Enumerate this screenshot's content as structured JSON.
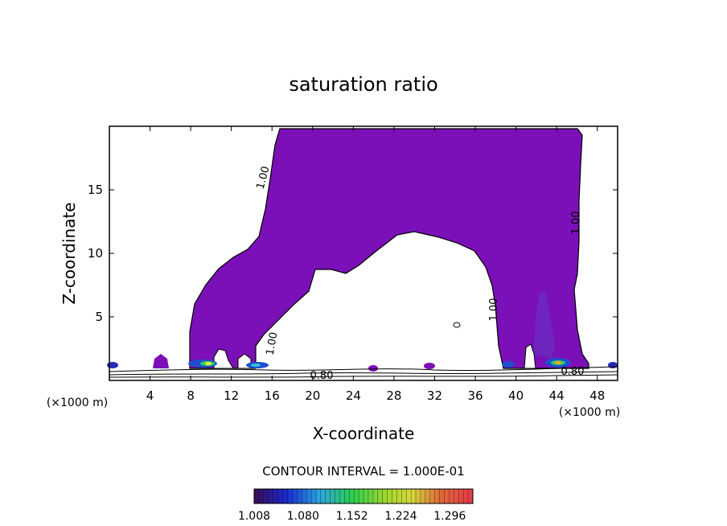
{
  "chart_data": {
    "type": "heatmap",
    "title": "saturation ratio",
    "xlabel": "X-coordinate",
    "ylabel": "Z-coordinate",
    "x_unit_left": "(×1000 m)",
    "x_unit_right": "(×1000 m)",
    "xlim": [
      0,
      50
    ],
    "ylim": [
      0,
      20
    ],
    "x_ticks": [
      "4",
      "8",
      "12",
      "16",
      "20",
      "24",
      "28",
      "32",
      "36",
      "40",
      "44",
      "48"
    ],
    "y_ticks": [
      "5",
      "10",
      "15"
    ],
    "contour_labels": [
      "1.00",
      "1.00",
      "1.00",
      "1.00",
      "0.80",
      "0.80"
    ],
    "contour_interval": "CONTOUR INTERVAL = 1.000E-01",
    "colorbar_labels": [
      "1.008",
      "1.080",
      "1.152",
      "1.224",
      "1.296"
    ],
    "colorbar_range": [
      1.008,
      1.33
    ],
    "fill_color": "#7b10b8",
    "grid": false
  }
}
